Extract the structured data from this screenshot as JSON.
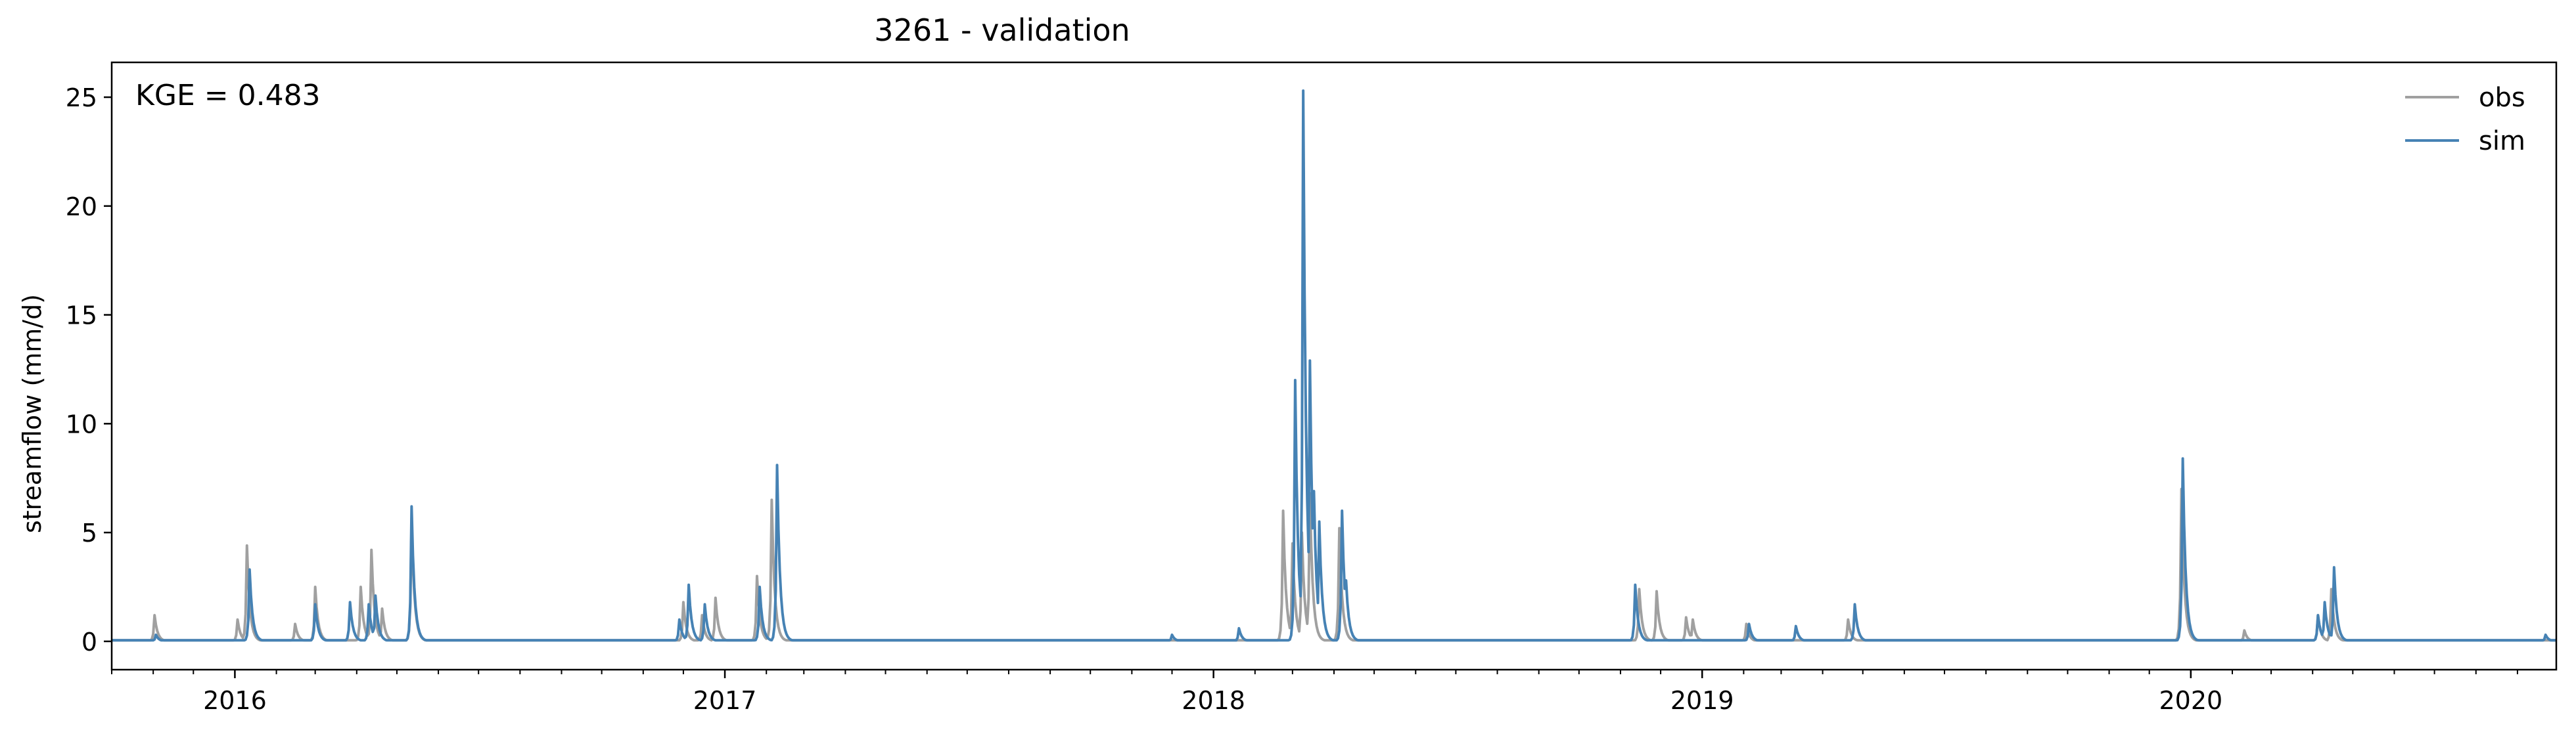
{
  "chart_data": {
    "type": "line",
    "title": "3261 - validation",
    "xlabel": "",
    "ylabel": "streamflow (mm/d)",
    "annotation": "KGE = 0.483",
    "xlim": [
      "2015-10-01",
      "2020-09-30"
    ],
    "ylim": [
      -1.3,
      26.6
    ],
    "x_ticks": [
      {
        "date": "2016-01-01",
        "label": "2016"
      },
      {
        "date": "2017-01-01",
        "label": "2017"
      },
      {
        "date": "2018-01-01",
        "label": "2018"
      },
      {
        "date": "2019-01-01",
        "label": "2019"
      },
      {
        "date": "2020-01-01",
        "label": "2020"
      }
    ],
    "y_ticks": [
      0,
      5,
      10,
      15,
      20,
      25
    ],
    "legend_position": "top-right",
    "grid": false,
    "baseline": 0.05,
    "series": [
      {
        "name": "obs",
        "color": "#a0a0a0",
        "peaks": [
          [
            "2015-11-02",
            1.2
          ],
          [
            "2016-01-03",
            1.0
          ],
          [
            "2016-01-10",
            4.4
          ],
          [
            "2016-02-15",
            0.8
          ],
          [
            "2016-03-01",
            2.5
          ],
          [
            "2016-04-04",
            2.5
          ],
          [
            "2016-04-12",
            4.2
          ],
          [
            "2016-04-20",
            1.5
          ],
          [
            "2016-05-12",
            5.5
          ],
          [
            "2016-12-01",
            1.8
          ],
          [
            "2016-12-15",
            1.2
          ],
          [
            "2016-12-25",
            2.0
          ],
          [
            "2017-01-25",
            3.0
          ],
          [
            "2017-02-05",
            6.5
          ],
          [
            "2018-02-22",
            6.0
          ],
          [
            "2018-03-01",
            4.5
          ],
          [
            "2018-03-08",
            5.0
          ],
          [
            "2018-03-14",
            6.8
          ],
          [
            "2018-04-05",
            5.2
          ],
          [
            "2018-11-15",
            2.4
          ],
          [
            "2018-11-28",
            2.3
          ],
          [
            "2018-12-20",
            1.1
          ],
          [
            "2018-12-25",
            1.0
          ],
          [
            "2019-02-03",
            0.8
          ],
          [
            "2019-04-20",
            1.0
          ],
          [
            "2019-12-25",
            7.0
          ],
          [
            "2020-02-10",
            0.5
          ],
          [
            "2020-04-05",
            1.2
          ],
          [
            "2020-04-15",
            2.4
          ]
        ]
      },
      {
        "name": "sim",
        "color": "#4682b4",
        "peaks": [
          [
            "2015-11-03",
            0.3
          ],
          [
            "2016-01-12",
            3.3
          ],
          [
            "2016-03-01",
            1.7
          ],
          [
            "2016-03-27",
            1.8
          ],
          [
            "2016-04-10",
            1.7
          ],
          [
            "2016-04-15",
            2.1
          ],
          [
            "2016-05-12",
            6.2
          ],
          [
            "2016-11-28",
            1.0
          ],
          [
            "2016-12-05",
            2.6
          ],
          [
            "2016-12-17",
            1.7
          ],
          [
            "2017-01-27",
            2.5
          ],
          [
            "2017-02-09",
            8.1
          ],
          [
            "2017-12-01",
            0.3
          ],
          [
            "2018-01-20",
            0.6
          ],
          [
            "2018-03-03",
            12.0
          ],
          [
            "2018-03-09",
            25.3
          ],
          [
            "2018-03-14",
            12.9
          ],
          [
            "2018-03-17",
            6.9
          ],
          [
            "2018-03-21",
            5.5
          ],
          [
            "2018-04-07",
            6.0
          ],
          [
            "2018-04-10",
            2.8
          ],
          [
            "2018-11-12",
            2.6
          ],
          [
            "2019-02-05",
            0.8
          ],
          [
            "2019-03-12",
            0.7
          ],
          [
            "2019-04-25",
            1.7
          ],
          [
            "2019-12-26",
            8.4
          ],
          [
            "2020-04-05",
            1.2
          ],
          [
            "2020-04-10",
            1.8
          ],
          [
            "2020-04-17",
            3.4
          ],
          [
            "2020-09-22",
            0.3
          ]
        ]
      }
    ]
  }
}
